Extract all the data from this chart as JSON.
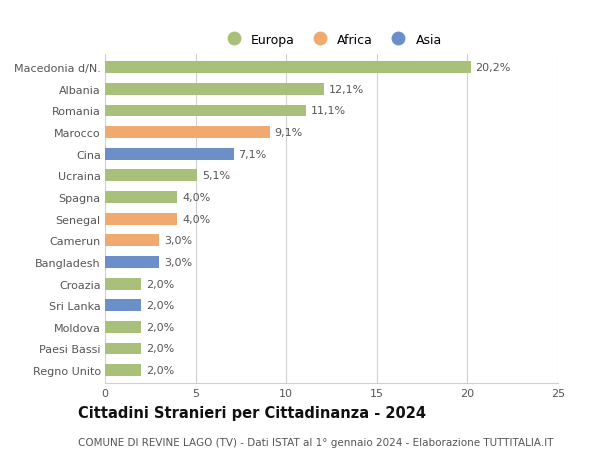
{
  "categories": [
    "Macedonia d/N.",
    "Albania",
    "Romania",
    "Marocco",
    "Cina",
    "Ucraina",
    "Spagna",
    "Senegal",
    "Camerun",
    "Bangladesh",
    "Croazia",
    "Sri Lanka",
    "Moldova",
    "Paesi Bassi",
    "Regno Unito"
  ],
  "values": [
    20.2,
    12.1,
    11.1,
    9.1,
    7.1,
    5.1,
    4.0,
    4.0,
    3.0,
    3.0,
    2.0,
    2.0,
    2.0,
    2.0,
    2.0
  ],
  "labels": [
    "20,2%",
    "12,1%",
    "11,1%",
    "9,1%",
    "7,1%",
    "5,1%",
    "4,0%",
    "4,0%",
    "3,0%",
    "3,0%",
    "2,0%",
    "2,0%",
    "2,0%",
    "2,0%",
    "2,0%"
  ],
  "continents": [
    "Europa",
    "Europa",
    "Europa",
    "Africa",
    "Asia",
    "Europa",
    "Europa",
    "Africa",
    "Africa",
    "Asia",
    "Europa",
    "Asia",
    "Europa",
    "Europa",
    "Europa"
  ],
  "colors": {
    "Europa": "#a8c07a",
    "Africa": "#f0a96e",
    "Asia": "#6b8fc9"
  },
  "legend_labels": [
    "Europa",
    "Africa",
    "Asia"
  ],
  "title": "Cittadini Stranieri per Cittadinanza - 2024",
  "subtitle": "COMUNE DI REVINE LAGO (TV) - Dati ISTAT al 1° gennaio 2024 - Elaborazione TUTTITALIA.IT",
  "xlim": [
    0,
    25
  ],
  "xticks": [
    0,
    5,
    10,
    15,
    20,
    25
  ],
  "bg_color": "#ffffff",
  "grid_color": "#d0d0d0",
  "bar_height": 0.55,
  "label_fontsize": 8.0,
  "tick_fontsize": 8.0,
  "title_fontsize": 10.5,
  "subtitle_fontsize": 7.5
}
